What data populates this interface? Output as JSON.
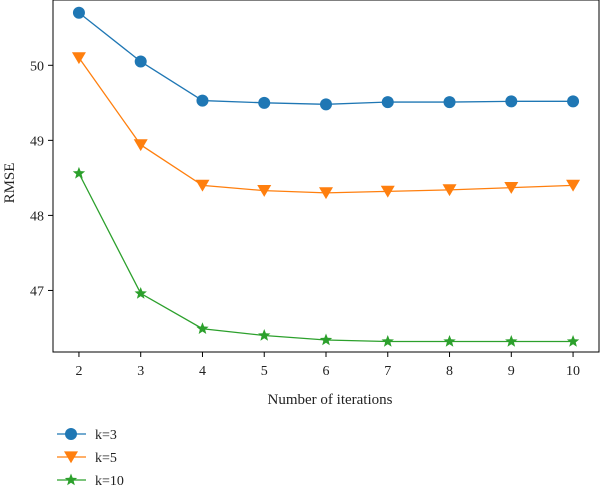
{
  "chart_data": {
    "type": "line",
    "xlabel": "Number of iterations",
    "ylabel": "RMSE",
    "x": [
      2,
      3,
      4,
      5,
      6,
      7,
      8,
      9,
      10
    ],
    "xticks": [
      "2",
      "3",
      "4",
      "5",
      "6",
      "7",
      "8",
      "9",
      "10"
    ],
    "yticks": [
      "47",
      "48",
      "49",
      "50"
    ],
    "ytick_values": [
      47,
      48,
      49,
      50
    ],
    "ylim": [
      46.18,
      50.87
    ],
    "xlim": [
      1.58,
      10.42
    ],
    "grid": false,
    "legend_position": "bottom-left",
    "series": [
      {
        "name": "k=3",
        "color": "#1f77b4",
        "marker": "circle",
        "values": [
          50.7,
          50.05,
          49.53,
          49.5,
          49.48,
          49.51,
          49.51,
          49.52,
          49.52
        ]
      },
      {
        "name": "k=5",
        "color": "#ff7f0e",
        "marker": "triangle-down",
        "values": [
          50.1,
          48.94,
          48.4,
          48.33,
          48.3,
          48.32,
          48.34,
          48.37,
          48.4
        ]
      },
      {
        "name": "k=10",
        "color": "#2ca02c",
        "marker": "star",
        "values": [
          48.56,
          46.96,
          46.49,
          46.4,
          46.34,
          46.32,
          46.32,
          46.32,
          46.32
        ]
      }
    ]
  }
}
